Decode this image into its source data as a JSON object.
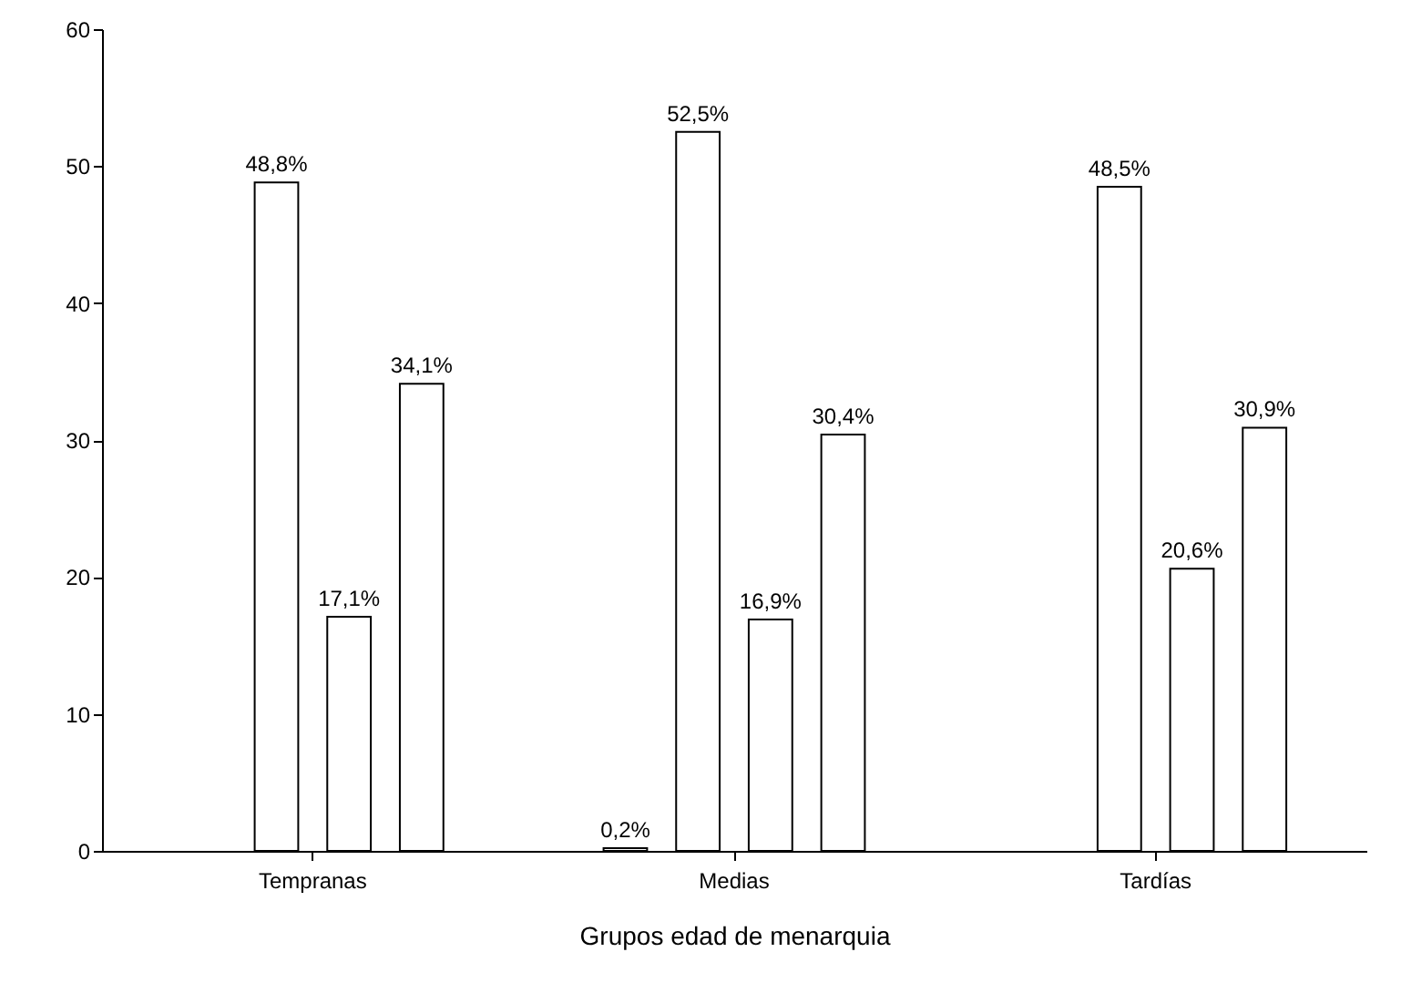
{
  "chart_data": {
    "type": "bar",
    "xlabel": "Grupos edad de menarquia",
    "categories": [
      "Tempranas",
      "Medias",
      "Tardías"
    ],
    "series": [
      {
        "color": "#ffffff",
        "values": [
          null,
          0.2,
          null
        ],
        "value_labels": [
          null,
          "0,2%",
          null
        ]
      },
      {
        "color": "#ffffff",
        "values": [
          48.8,
          52.5,
          48.5
        ],
        "value_labels": [
          "48,8%",
          "52,5%",
          "48,5%"
        ]
      },
      {
        "color": "#ffffff",
        "values": [
          17.1,
          16.9,
          20.6
        ],
        "value_labels": [
          "17,1%",
          "16,9%",
          "20,6%"
        ]
      },
      {
        "color": "#ffffff",
        "values": [
          34.1,
          30.4,
          30.9
        ],
        "value_labels": [
          "34,1%",
          "30,4%",
          "30,9%"
        ]
      }
    ],
    "ylim": [
      0,
      60
    ],
    "yticks": [
      0,
      10,
      20,
      30,
      40,
      50,
      60
    ],
    "grid": false
  }
}
